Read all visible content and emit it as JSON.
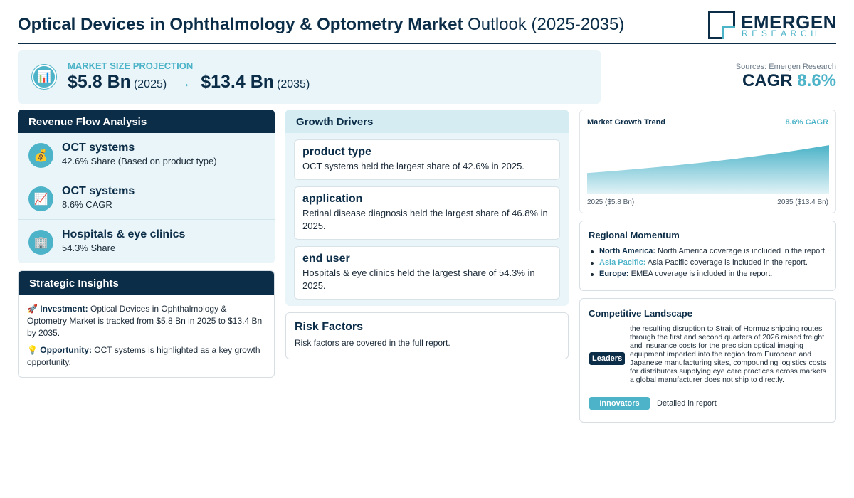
{
  "header": {
    "title_bold": "Optical Devices in Ophthalmology & Optometry Market",
    "title_rest": "Outlook (2025-2035)",
    "logo_name": "EMERGEN",
    "logo_sub": "RESEARCH"
  },
  "market_size": {
    "label": "MARKET SIZE PROJECTION",
    "icon": "bar-chart-icon",
    "start_value": "$5.8 Bn",
    "start_year": "(2025)",
    "arrow": "→",
    "end_value": "$13.4 Bn",
    "end_year": "(2035)"
  },
  "summary": {
    "sources": "Sources: Emergen Research",
    "cagr_label": "CAGR",
    "cagr_value": "8.6%"
  },
  "revenue_flow": {
    "heading": "Revenue Flow Analysis",
    "items": [
      {
        "icon": "money-bag-icon",
        "glyph": "💰",
        "title": "OCT systems",
        "subtitle": "42.6% Share (Based on product type)"
      },
      {
        "icon": "trend-chart-icon",
        "glyph": "📈",
        "title": "OCT systems",
        "subtitle": "8.6% CAGR"
      },
      {
        "icon": "building-icon",
        "glyph": "🏢",
        "title": "Hospitals & eye clinics",
        "subtitle": "54.3% Share"
      }
    ]
  },
  "strategic_insights": {
    "heading": "Strategic Insights",
    "investment_glyph": "🚀",
    "investment_label": "Investment:",
    "investment_text": "Optical Devices in Ophthalmology & Optometry Market is tracked from $5.8 Bn in 2025 to $13.4 Bn by 2035.",
    "opportunity_glyph": "💡",
    "opportunity_label": "Opportunity:",
    "opportunity_text": "OCT systems is highlighted as a key growth opportunity."
  },
  "growth_drivers": {
    "heading": "Growth Drivers",
    "items": [
      {
        "title": "product type",
        "text": "OCT systems held the largest share of 42.6% in 2025."
      },
      {
        "title": "application",
        "text": "Retinal disease diagnosis held the largest share of 46.8% in 2025."
      },
      {
        "title": "end user",
        "text": "Hospitals & eye clinics held the largest share of 54.3% in 2025."
      }
    ]
  },
  "risk_factors": {
    "heading": "Risk Factors",
    "text": "Risk factors are covered in the full report."
  },
  "market_trend": {
    "title": "Market Growth Trend",
    "cagr": "8.6% CAGR",
    "x_start": "2025 ($5.8 Bn)",
    "x_end": "2035 ($13.4 Bn)",
    "colors": {
      "fill_top": "#4cb3c8",
      "fill_bottom": "#e3f3f7"
    }
  },
  "chart_data": {
    "type": "area",
    "x": [
      2025,
      2035
    ],
    "values": [
      5.8,
      13.4
    ],
    "title": "Market Growth Trend",
    "annotation": "8.6% CAGR",
    "tick_labels": [
      "2025 ($5.8 Bn)",
      "2035 ($13.4 Bn)"
    ],
    "grid": false
  },
  "regional_momentum": {
    "heading": "Regional Momentum",
    "items": [
      {
        "region": "North America:",
        "text": "North America coverage is included in the report.",
        "highlight": false
      },
      {
        "region": "Asia Pacific:",
        "text": "Asia Pacific coverage is included in the report.",
        "highlight": true
      },
      {
        "region": "Europe:",
        "text": "EMEA coverage is included in the report.",
        "highlight": false
      }
    ]
  },
  "competitive_landscape": {
    "heading": "Competitive Landscape",
    "leaders_label": "Leaders",
    "leaders_text": "the resulting disruption to Strait of Hormuz shipping routes through the first and second quarters of 2026 raised freight and insurance costs for the precision optical imaging equipment imported into the region from European and Japanese manufacturing sites, compounding logistics costs for distributors supplying eye care practices across markets a global manufacturer does not ship to directly.",
    "innovators_label": "Innovators",
    "innovators_text": "Detailed in report"
  }
}
